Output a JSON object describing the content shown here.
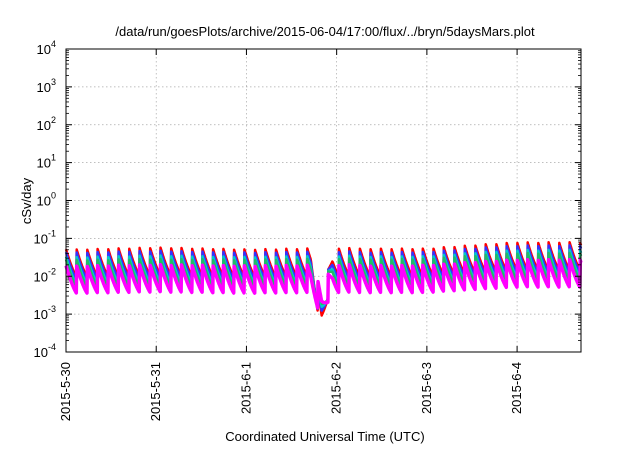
{
  "chart_data": {
    "type": "line",
    "title": "/data/run/goesPlots/archive/2015-06-04/17:00/flux/../bryn/5daysMars.plot",
    "xlabel": "Coordinated Universal Time (UTC)",
    "ylabel": "cSv/day",
    "yscale": "log",
    "ylim": [
      0.0001,
      10000
    ],
    "xlim": [
      "2015-05-30T00:00",
      "2015-06-04T17:00"
    ],
    "x_tick_labels": [
      "2015-5-30",
      "2015-5-31",
      "2015-6-1",
      "2015-6-2",
      "2015-6-3",
      "2015-6-4"
    ],
    "y_ticks": [
      {
        "value": 0.0001,
        "base": "10",
        "exp": "-4"
      },
      {
        "value": 0.001,
        "base": "10",
        "exp": "-3"
      },
      {
        "value": 0.01,
        "base": "10",
        "exp": "-2"
      },
      {
        "value": 0.1,
        "base": "10",
        "exp": "-1"
      },
      {
        "value": 1,
        "base": "10",
        "exp": "0"
      },
      {
        "value": 10,
        "base": "10",
        "exp": "1"
      },
      {
        "value": 100,
        "base": "10",
        "exp": "2"
      },
      {
        "value": 1000,
        "base": "10",
        "exp": "3"
      },
      {
        "value": 10000,
        "base": "10",
        "exp": "4"
      }
    ],
    "grid": true,
    "legend": "none",
    "dip": {
      "x": "2015-06-01T20:00",
      "min": 0.001
    },
    "series": [
      {
        "color": "#ff0000",
        "line_width": 2.5,
        "base": [
          0.03,
          0.034,
          0.03,
          0.032,
          0.032,
          0.046
        ]
      },
      {
        "color": "#3333ff",
        "line_width": 2.5,
        "base": [
          0.025,
          0.028,
          0.025,
          0.026,
          0.026,
          0.038
        ]
      },
      {
        "color": "#00cccc",
        "line_width": 2.5,
        "base": [
          0.019,
          0.021,
          0.019,
          0.02,
          0.02,
          0.029
        ]
      },
      {
        "color": "#22bb66",
        "line_width": 2.5,
        "base": [
          0.016,
          0.017,
          0.016,
          0.017,
          0.017,
          0.024
        ]
      },
      {
        "color": "#ff00ff",
        "line_width": 3.5,
        "base": [
          0.011,
          0.012,
          0.011,
          0.0115,
          0.0115,
          0.016
        ]
      }
    ]
  }
}
